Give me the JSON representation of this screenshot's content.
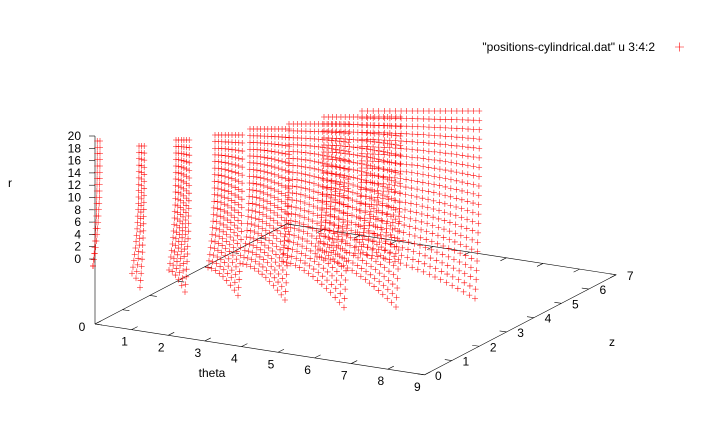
{
  "chart_data": {
    "type": "scatter",
    "mode": "3d",
    "title": "",
    "legend": {
      "label": "\"positions-cylindrical.dat\" u 3:4:2",
      "placement": "top-right",
      "marker": "plus"
    },
    "colors": {
      "series": "#ff0000",
      "axis": "#000000",
      "background": "#ffffff"
    },
    "axes": {
      "x": {
        "label": "theta",
        "range": [
          0,
          9
        ],
        "ticks": [
          "0",
          "1",
          "2",
          "3",
          "4",
          "5",
          "6",
          "7",
          "8",
          "9"
        ]
      },
      "y": {
        "label": "z",
        "range": [
          0,
          7
        ],
        "ticks": [
          "0",
          "1",
          "2",
          "3",
          "4",
          "5",
          "6",
          "7"
        ]
      },
      "z": {
        "label": "r",
        "range": [
          0,
          20
        ],
        "ticks": [
          "0",
          "2",
          "4",
          "6",
          "8",
          "10",
          "12",
          "14",
          "16",
          "18",
          "20"
        ]
      }
    },
    "grid": false,
    "series": [
      {
        "name": "\"positions-cylindrical.dat\" u 3:4:2",
        "description_z_slices": [
          0,
          1,
          2,
          3,
          4,
          5,
          6,
          7
        ],
        "theta_max_per_slice": [
          0.0,
          0.6,
          1.2,
          1.9,
          2.7,
          3.6,
          4.4,
          5.3
        ],
        "r_values": [
          0,
          1,
          2,
          3,
          4,
          5,
          6,
          7,
          8,
          9,
          10,
          11,
          12,
          13,
          14,
          15,
          16,
          17,
          18,
          19,
          20
        ]
      }
    ]
  }
}
